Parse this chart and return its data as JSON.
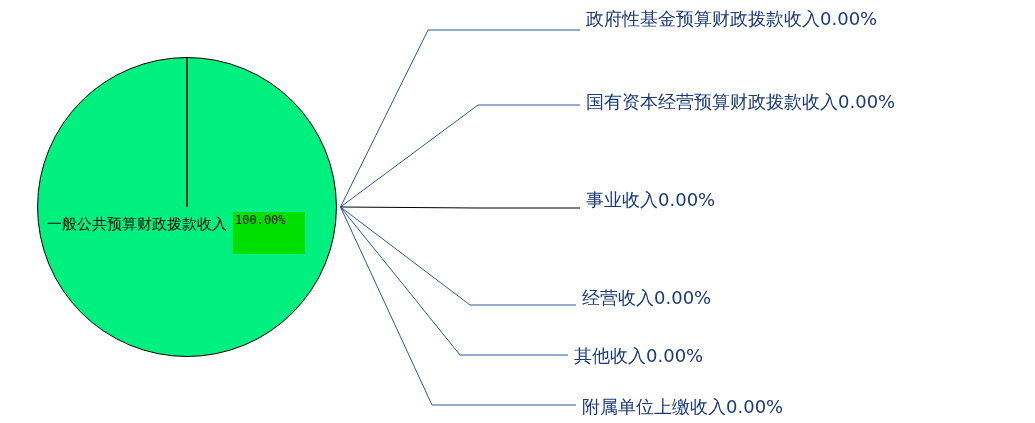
{
  "chart_data": {
    "type": "pie",
    "categories": [
      "一般公共预算财政拨款收入",
      "政府性基金预算财政拨款收入",
      "国有资本经营预算财政拨款收入",
      "事业收入",
      "经营收入",
      "其他收入",
      "附属单位上缴收入"
    ],
    "values": [
      100,
      0,
      0,
      0,
      0,
      0,
      0
    ],
    "value_labels": [
      "100.00%",
      "0.00%",
      "0.00%",
      "0.00%",
      "0.00%",
      "0.00%",
      "0.00%"
    ],
    "colors": [
      "#00f080",
      "#00f080",
      "#00f080",
      "#00f080",
      "#00f080",
      "#00f080",
      "#00f080"
    ],
    "legend": false
  }
}
